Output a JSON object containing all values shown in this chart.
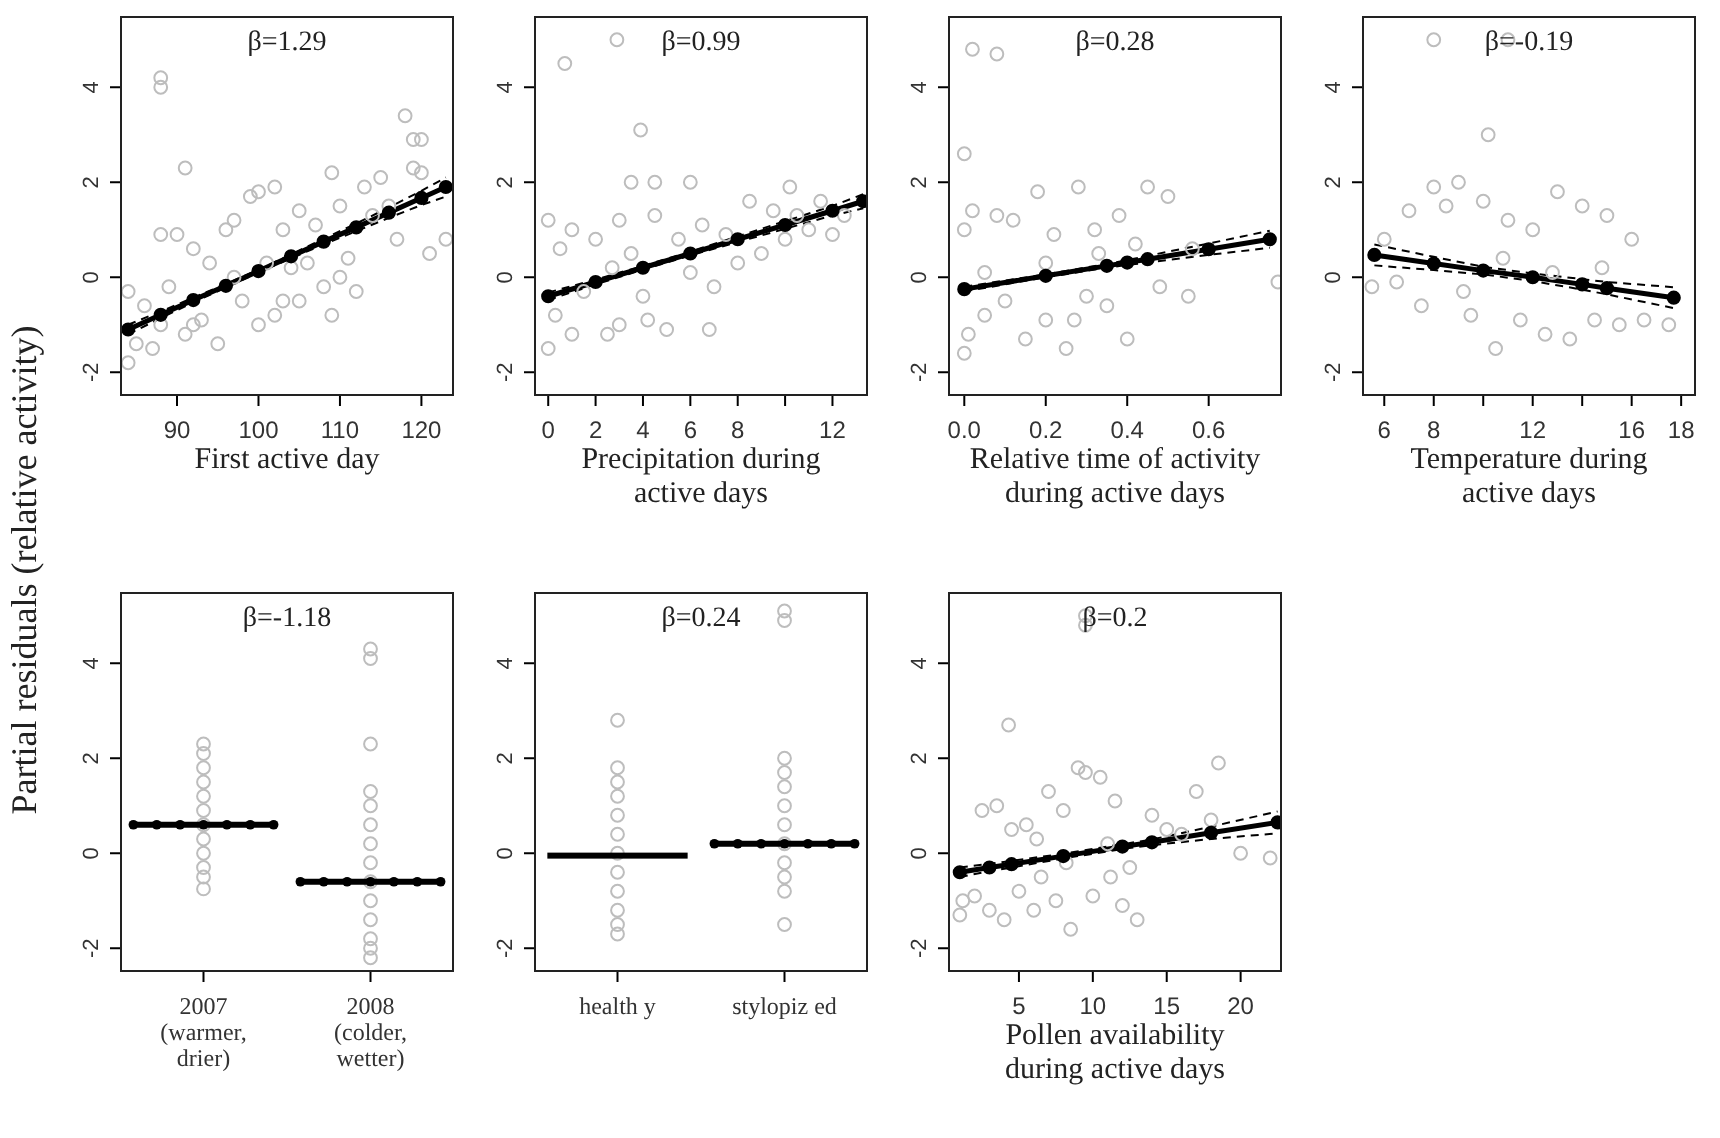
{
  "chart_data": [
    {
      "type": "scatter",
      "ylabel": "Partial residuals (relative activity)",
      "annotations": [
        "β=1.29"
      ],
      "xlabel": "First active day",
      "xlim": [
        83,
        124
      ],
      "xticks": [
        90,
        100,
        110,
        120
      ],
      "ylim": [
        -2.5,
        5.5
      ],
      "yticks": [
        -2,
        0,
        2,
        4
      ],
      "series": [
        {
          "color": "#bdbdbd",
          "x": [
            88,
            88,
            91,
            118,
            119,
            120,
            119,
            120,
            121,
            123,
            117,
            109,
            84,
            84,
            85,
            86,
            87,
            88,
            89,
            90,
            91,
            92,
            93,
            94,
            95,
            96,
            97,
            98,
            99,
            100,
            100,
            101,
            102,
            102,
            103,
            104,
            105,
            105,
            106,
            107,
            108,
            109,
            110,
            110,
            111,
            112,
            113,
            114,
            115,
            116,
            103,
            97,
            92,
            88
          ],
          "values": [
            4.2,
            4.0,
            2.3,
            3.4,
            2.9,
            2.9,
            2.3,
            2.2,
            0.5,
            0.8,
            0.8,
            -0.8,
            -1.8,
            -0.3,
            -1.4,
            -0.6,
            -1.5,
            0.9,
            -0.2,
            0.9,
            -1.2,
            0.6,
            -0.9,
            0.3,
            -1.4,
            1.0,
            0.0,
            -0.5,
            1.7,
            1.8,
            -1.0,
            0.3,
            1.9,
            -0.8,
            1.0,
            0.2,
            -0.5,
            1.4,
            0.3,
            1.1,
            -0.2,
            2.2,
            0.0,
            1.5,
            0.4,
            -0.3,
            1.9,
            1.3,
            2.1,
            1.5,
            -0.5,
            1.2,
            -1.0,
            -1.0
          ]
        },
        {
          "type": "line",
          "color": "#000000",
          "marker": "none",
          "line_style": "dashed",
          "x": [
            84,
            88,
            92,
            96,
            100,
            104,
            108,
            112,
            116,
            120,
            123
          ],
          "values": [
            -1.2,
            -0.86,
            -0.53,
            -0.22,
            0.1,
            0.4,
            0.69,
            0.97,
            1.25,
            1.52,
            1.7
          ]
        },
        {
          "type": "line",
          "color": "#000000",
          "marker": "none",
          "line_style": "dashed",
          "x": [
            84,
            88,
            92,
            96,
            100,
            104,
            108,
            112,
            116,
            120,
            123
          ],
          "values": [
            -1.0,
            -0.72,
            -0.43,
            -0.14,
            0.16,
            0.48,
            0.81,
            1.13,
            1.47,
            1.82,
            2.1
          ]
        },
        {
          "type": "line",
          "color": "#000000",
          "marker": "circle",
          "line_style": "solid",
          "x": [
            84,
            88,
            92,
            96,
            100,
            104,
            108,
            112,
            116,
            120,
            123
          ],
          "values": [
            -1.1,
            -0.79,
            -0.48,
            -0.18,
            0.13,
            0.44,
            0.75,
            1.05,
            1.36,
            1.67,
            1.9
          ]
        }
      ]
    },
    {
      "type": "scatter",
      "annotations": [
        "β=0.99"
      ],
      "xlabel": "Precipitation during active days",
      "xlim": [
        -0.6,
        13.5
      ],
      "xticks": [
        0,
        2,
        4,
        6,
        8,
        {
          "value": 10,
          "label": null
        },
        12
      ],
      "ylim": [
        -2.5,
        5.5
      ],
      "yticks": [
        -2,
        0,
        2,
        4
      ],
      "series": [
        {
          "color": "#bdbdbd",
          "x": [
            0.7,
            2.9,
            3.9,
            3.5,
            4.5,
            6.0,
            10.2,
            0,
            0,
            0.3,
            0.5,
            1,
            1,
            1.5,
            2,
            2.5,
            3,
            3,
            3.5,
            4,
            4.5,
            5,
            5.5,
            6,
            6.5,
            7,
            7.5,
            8,
            8.5,
            9,
            9.5,
            10,
            10.5,
            11,
            11.5,
            12,
            12.5,
            6.8,
            4.2,
            2.7
          ],
          "values": [
            4.5,
            5.0,
            3.1,
            2.0,
            2.0,
            2.0,
            1.9,
            -1.5,
            1.2,
            -0.8,
            0.6,
            -1.2,
            1.0,
            -0.3,
            0.8,
            -1.2,
            1.2,
            -1.0,
            0.5,
            -0.4,
            1.3,
            -1.1,
            0.8,
            0.1,
            1.1,
            -0.2,
            0.9,
            0.3,
            1.6,
            0.5,
            1.4,
            0.8,
            1.3,
            1.0,
            1.6,
            0.9,
            1.3,
            -1.1,
            -0.9,
            0.2
          ]
        },
        {
          "type": "line",
          "color": "#000000",
          "marker": "none",
          "line_style": "dashed",
          "x": [
            0,
            2,
            4,
            6,
            8,
            10,
            12,
            13.3
          ],
          "values": [
            -0.48,
            -0.15,
            0.16,
            0.46,
            0.74,
            1.02,
            1.3,
            1.45
          ]
        },
        {
          "type": "line",
          "color": "#000000",
          "marker": "none",
          "line_style": "dashed",
          "x": [
            0,
            2,
            4,
            6,
            8,
            10,
            12,
            13.3
          ],
          "values": [
            -0.32,
            -0.05,
            0.24,
            0.54,
            0.86,
            1.18,
            1.5,
            1.75
          ]
        },
        {
          "type": "line",
          "color": "#000000",
          "marker": "circle",
          "line_style": "solid",
          "x": [
            0,
            2,
            4,
            6,
            8,
            10,
            12,
            13.3
          ],
          "values": [
            -0.4,
            -0.1,
            0.2,
            0.5,
            0.8,
            1.1,
            1.4,
            1.6
          ]
        }
      ]
    },
    {
      "type": "scatter",
      "annotations": [
        "β=0.28"
      ],
      "xlabel": "Relative time of activity during active days",
      "xlim": [
        -0.04,
        0.78
      ],
      "xticks": [
        {
          "value": 0,
          "label": "0.0"
        },
        0.2,
        0.4,
        0.6
      ],
      "ylim": [
        -2.5,
        5.5
      ],
      "yticks": [
        -2,
        0,
        2,
        4
      ],
      "series": [
        {
          "color": "#bdbdbd",
          "x": [
            0.02,
            0.08,
            0.0,
            0.77,
            0,
            0,
            0.01,
            0.02,
            0.05,
            0.08,
            0.1,
            0.12,
            0.15,
            0.18,
            0.2,
            0.22,
            0.25,
            0.28,
            0.3,
            0.32,
            0.35,
            0.38,
            0.4,
            0.42,
            0.45,
            0.48,
            0.5,
            0.55,
            0.56,
            0.2,
            0.27,
            0.33,
            0.05
          ],
          "values": [
            4.8,
            4.7,
            2.6,
            -0.1,
            -1.6,
            1.0,
            -1.2,
            1.4,
            -0.8,
            1.3,
            -0.5,
            1.2,
            -1.3,
            1.8,
            -0.9,
            0.9,
            -1.5,
            1.9,
            -0.4,
            1.0,
            -0.6,
            1.3,
            -1.3,
            0.7,
            1.9,
            -0.2,
            1.7,
            -0.4,
            0.6,
            0.3,
            -0.9,
            0.5,
            0.1
          ]
        },
        {
          "type": "line",
          "color": "#000000",
          "marker": "none",
          "line_style": "dashed",
          "x": [
            0,
            0.2,
            0.35,
            0.4,
            0.45,
            0.6,
            0.75
          ],
          "values": [
            -0.3,
            0.0,
            0.2,
            0.26,
            0.31,
            0.47,
            0.62
          ]
        },
        {
          "type": "line",
          "color": "#000000",
          "marker": "none",
          "line_style": "dashed",
          "x": [
            0,
            0.2,
            0.35,
            0.4,
            0.45,
            0.6,
            0.75
          ],
          "values": [
            -0.2,
            0.06,
            0.28,
            0.36,
            0.45,
            0.71,
            0.98
          ]
        },
        {
          "type": "line",
          "color": "#000000",
          "marker": "circle",
          "line_style": "solid",
          "x": [
            0,
            0.2,
            0.35,
            0.4,
            0.45,
            0.6,
            0.75
          ],
          "values": [
            -0.25,
            0.03,
            0.24,
            0.31,
            0.38,
            0.59,
            0.8
          ]
        }
      ]
    },
    {
      "type": "scatter",
      "annotations": [
        "β=-0.19"
      ],
      "xlabel": "Temperature during active days",
      "xlim": [
        5.1,
        18.6
      ],
      "xticks": [
        6,
        8,
        {
          "value": 10,
          "label": null
        },
        12,
        {
          "value": 14,
          "label": null
        },
        16,
        18
      ],
      "ylim": [
        -2.5,
        5.5
      ],
      "yticks": [
        -2,
        0,
        2,
        4
      ],
      "series": [
        {
          "color": "#bdbdbd",
          "x": [
            8.0,
            11.0,
            10.2,
            5.5,
            6.0,
            6.5,
            7.0,
            7.5,
            8.0,
            8.5,
            9.0,
            9.5,
            10,
            10.5,
            11,
            11.5,
            12,
            12.5,
            13,
            13.5,
            14,
            14.5,
            15,
            15.5,
            16,
            16.5,
            17.5,
            9.2,
            12.8,
            14.8,
            10.8
          ],
          "values": [
            5.0,
            5.0,
            3.0,
            -0.2,
            0.8,
            -0.1,
            1.4,
            -0.6,
            1.9,
            1.5,
            2.0,
            -0.8,
            1.6,
            -1.5,
            1.2,
            -0.9,
            1.0,
            -1.2,
            1.8,
            -1.3,
            1.5,
            -0.9,
            1.3,
            -1.0,
            0.8,
            -0.9,
            -1.0,
            -0.3,
            0.1,
            0.2,
            0.4
          ]
        },
        {
          "type": "line",
          "color": "#000000",
          "marker": "none",
          "line_style": "dashed",
          "x": [
            5.6,
            8,
            10,
            12,
            14,
            15,
            17.7
          ],
          "values": [
            0.25,
            0.15,
            0.06,
            -0.08,
            -0.26,
            -0.36,
            -0.65
          ]
        },
        {
          "type": "line",
          "color": "#000000",
          "marker": "none",
          "line_style": "dashed",
          "x": [
            5.6,
            8,
            10,
            12,
            14,
            15,
            17.7
          ],
          "values": [
            0.69,
            0.43,
            0.22,
            0.08,
            -0.04,
            -0.1,
            -0.21
          ]
        },
        {
          "type": "line",
          "color": "#000000",
          "marker": "circle",
          "line_style": "solid",
          "x": [
            5.6,
            8,
            10,
            12,
            14,
            15,
            17.7
          ],
          "values": [
            0.47,
            0.29,
            0.14,
            0.0,
            -0.15,
            -0.23,
            -0.43
          ]
        }
      ]
    },
    {
      "type": "scatter",
      "annotations": [
        "β=-1.18"
      ],
      "categories": [
        "2007\n(warmer,\ndrier)",
        "2008\n(colder,\nwetter)"
      ],
      "ylim": [
        -2.5,
        5.5
      ],
      "yticks": [
        -2,
        0,
        2,
        4
      ],
      "series": [
        {
          "type": "scatter",
          "color": "#bdbdbd",
          "x": [
            "2007\n(warmer,\ndrier)",
            "2007\n(warmer,\ndrier)",
            "2007\n(warmer,\ndrier)",
            "2007\n(warmer,\ndrier)",
            "2007\n(warmer,\ndrier)",
            "2007\n(warmer,\ndrier)",
            "2007\n(warmer,\ndrier)",
            "2007\n(warmer,\ndrier)",
            "2007\n(warmer,\ndrier)",
            "2007\n(warmer,\ndrier)",
            "2007\n(warmer,\ndrier)",
            "2007\n(warmer,\ndrier)",
            "2008\n(colder,\nwetter)",
            "2008\n(colder,\nwetter)",
            "2008\n(colder,\nwetter)",
            "2008\n(colder,\nwetter)",
            "2008\n(colder,\nwetter)",
            "2008\n(colder,\nwetter)",
            "2008\n(colder,\nwetter)",
            "2008\n(colder,\nwetter)",
            "2008\n(colder,\nwetter)",
            "2008\n(colder,\nwetter)",
            "2008\n(colder,\nwetter)",
            "2008\n(colder,\nwetter)",
            "2008\n(colder,\nwetter)",
            "2008\n(colder,\nwetter)"
          ],
          "values": [
            2.3,
            2.1,
            1.8,
            1.5,
            1.2,
            0.9,
            0.6,
            0.3,
            0.0,
            -0.3,
            -0.5,
            -0.75,
            4.3,
            4.1,
            2.3,
            1.3,
            1.0,
            0.6,
            0.2,
            -0.2,
            -0.6,
            -1.0,
            -1.4,
            -1.8,
            -2.0,
            -2.2
          ]
        },
        {
          "type": "box",
          "color": "#000000",
          "marker": "circle",
          "boxes": [
            {
              "low": 0.6,
              "q1": 0.6,
              "median": 0.6,
              "q3": 0.6,
              "high": 0.6
            },
            null
          ]
        },
        {
          "type": "box",
          "color": "#000000",
          "marker": "circle",
          "boxes": [
            null,
            {
              "low": -0.6,
              "q1": -0.6,
              "median": -0.6,
              "q3": -0.6,
              "high": -0.6
            }
          ]
        }
      ]
    },
    {
      "type": "scatter",
      "annotations": [
        "β=0.24"
      ],
      "categories": [
        "health y",
        "stylopiz ed"
      ],
      "ylim": [
        -2.5,
        5.5
      ],
      "yticks": [
        -2,
        0,
        2,
        4
      ],
      "series": [
        {
          "type": "scatter",
          "color": "#bdbdbd",
          "x": [
            "health y",
            "health y",
            "health y",
            "health y",
            "health y",
            "health y",
            "health y",
            "health y",
            "health y",
            "health y",
            "health y",
            "health y",
            "stylopiz ed",
            "stylopiz ed",
            "stylopiz ed",
            "stylopiz ed",
            "stylopiz ed",
            "stylopiz ed",
            "stylopiz ed",
            "stylopiz ed",
            "stylopiz ed",
            "stylopiz ed",
            "stylopiz ed",
            "stylopiz ed"
          ],
          "values": [
            2.8,
            1.8,
            1.5,
            1.2,
            0.8,
            0.4,
            0.0,
            -0.4,
            -0.8,
            -1.2,
            -1.5,
            -1.7,
            5.1,
            4.9,
            2.0,
            1.7,
            1.4,
            1.0,
            0.6,
            0.2,
            -0.2,
            -0.5,
            -0.8,
            -1.5
          ]
        },
        {
          "type": "box",
          "color": "#000000",
          "boxes": [
            {
              "low": -0.05,
              "q1": -0.05,
              "median": -0.05,
              "q3": -0.05,
              "high": -0.05
            },
            null
          ]
        },
        {
          "type": "box",
          "color": "#000000",
          "marker": "circle",
          "boxes": [
            null,
            {
              "low": 0.2,
              "q1": 0.2,
              "median": 0.2,
              "q3": 0.2,
              "high": 0.2
            }
          ]
        }
      ]
    },
    {
      "type": "scatter",
      "annotations": [
        "β=0.2"
      ],
      "xlabel": "Pollen availability during active days",
      "xlim": [
        0.2,
        22.8
      ],
      "xticks": [
        5,
        10,
        15,
        20
      ],
      "ylim": [
        -2.5,
        5.5
      ],
      "yticks": [
        -2,
        0,
        2,
        4
      ],
      "series": [
        {
          "color": "#bdbdbd",
          "x": [
            9.5,
            9.5,
            4.3,
            18.5,
            1,
            1.2,
            2,
            2.5,
            3,
            3.5,
            4,
            4.5,
            5,
            5.5,
            6,
            6.5,
            7,
            7.5,
            8,
            8.5,
            9,
            9.5,
            10,
            10.5,
            11,
            11.5,
            12,
            12.5,
            13,
            14,
            15,
            16,
            17,
            18,
            20,
            22,
            8.2,
            6.2,
            11.2
          ],
          "values": [
            5.0,
            4.8,
            2.7,
            1.9,
            -1.3,
            -1.0,
            -0.9,
            0.9,
            -1.2,
            1.0,
            -1.4,
            0.5,
            -0.8,
            0.6,
            -1.2,
            -0.5,
            1.3,
            -1.0,
            0.9,
            -1.6,
            1.8,
            1.7,
            -0.9,
            1.6,
            0.2,
            1.1,
            -1.1,
            -0.3,
            -1.4,
            0.8,
            0.5,
            0.4,
            1.3,
            0.7,
            0.0,
            -0.1,
            -0.2,
            0.3,
            -0.5
          ]
        },
        {
          "type": "line",
          "color": "#000000",
          "marker": "none",
          "line_style": "dashed",
          "x": [
            1,
            3,
            4.5,
            8,
            12,
            14,
            18,
            22.5
          ],
          "values": [
            -0.5,
            -0.38,
            -0.3,
            -0.11,
            0.09,
            0.17,
            0.3,
            0.42
          ]
        },
        {
          "type": "line",
          "color": "#000000",
          "marker": "none",
          "line_style": "dashed",
          "x": [
            1,
            3,
            4.5,
            8,
            12,
            14,
            18,
            22.5
          ],
          "values": [
            -0.3,
            -0.22,
            -0.16,
            -0.01,
            0.19,
            0.29,
            0.56,
            0.88
          ]
        },
        {
          "type": "line",
          "color": "#000000",
          "marker": "circle",
          "line_style": "solid",
          "x": [
            1,
            3,
            4.5,
            8,
            12,
            14,
            18,
            22.5
          ],
          "values": [
            -0.4,
            -0.3,
            -0.23,
            -0.06,
            0.14,
            0.23,
            0.43,
            0.65
          ]
        }
      ]
    }
  ]
}
